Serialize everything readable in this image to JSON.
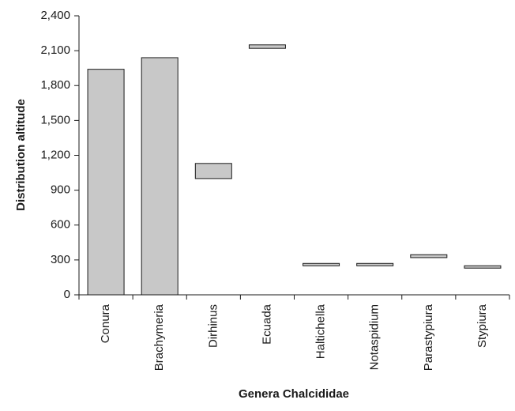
{
  "chart_data": {
    "type": "bar",
    "subtype": "floating-range",
    "title": "",
    "xlabel": "Genera Chalcididae",
    "ylabel": "Distribution altitude",
    "categories": [
      "Conura",
      "Brachymeria",
      "Dirhinus",
      "Ecuada",
      "Haltichella",
      "Notaspidium",
      "Parastypiura",
      "Stypiura"
    ],
    "ranges": [
      {
        "low": 0,
        "high": 1940
      },
      {
        "low": 0,
        "high": 2040
      },
      {
        "low": 1000,
        "high": 1130
      },
      {
        "low": 2120,
        "high": 2150
      },
      {
        "low": 250,
        "high": 270
      },
      {
        "low": 250,
        "high": 270
      },
      {
        "low": 320,
        "high": 345
      },
      {
        "low": 230,
        "high": 250
      }
    ],
    "ylim": [
      0,
      2400
    ],
    "yticks": [
      0,
      300,
      600,
      900,
      1200,
      1500,
      1800,
      2100,
      2400
    ],
    "ytick_labels": [
      "0",
      "300",
      "600",
      "900",
      "1,200",
      "1,500",
      "1,800",
      "2,100",
      "2,400"
    ],
    "bar_color": "#c8c8c8",
    "bar_edge_color": "#1a1a1a",
    "grid": false,
    "legend": "none"
  }
}
